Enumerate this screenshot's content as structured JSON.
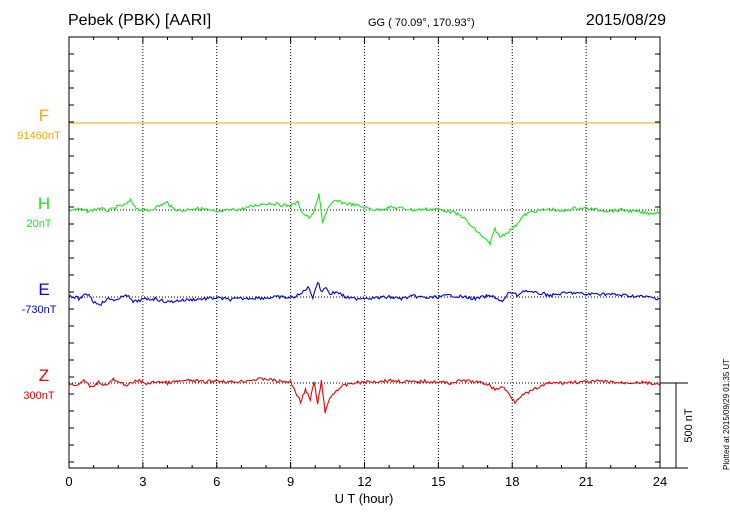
{
  "header": {
    "station": "Pebek (PBK)  [AARI]",
    "coords": "GG ( 70.09°, 170.93°)",
    "date": "2015/08/29"
  },
  "footer": {
    "plotted": "Plotted at 2015/09/29 01:35 UT"
  },
  "colors": {
    "F": "#f0a800",
    "H": "#20e020",
    "E": "#0000dd",
    "Z": "#ee0000"
  },
  "chart_data": {
    "type": "line",
    "title": "Pebek (PBK)  [AARI]",
    "xlabel": "U T (hour)",
    "xlim": [
      0,
      24
    ],
    "xticks": [
      "0",
      "3",
      "6",
      "9",
      "12",
      "15",
      "18",
      "21",
      "24"
    ],
    "scale_label": "500 nT",
    "scale_nT": 500,
    "grid": true,
    "series": [
      {
        "name": "F",
        "baseline": "91460nT",
        "x": [
          0,
          24
        ],
        "y": [
          0,
          0
        ]
      },
      {
        "name": "H",
        "baseline": "20nT",
        "x": [
          0,
          0.4,
          0.8,
          1.2,
          1.6,
          2.0,
          2.3,
          2.5,
          2.8,
          3.2,
          3.6,
          4.0,
          4.2,
          4.6,
          5.0,
          5.5,
          6.0,
          6.5,
          7.0,
          7.4,
          7.8,
          8.2,
          8.6,
          9.0,
          9.3,
          9.5,
          9.8,
          10.0,
          10.15,
          10.3,
          10.5,
          10.8,
          11.2,
          11.6,
          12.0,
          12.5,
          13.0,
          13.5,
          14.0,
          14.5,
          15.0,
          15.5,
          16.0,
          16.3,
          16.6,
          16.9,
          17.1,
          17.3,
          17.5,
          17.8,
          18.1,
          18.3,
          18.5,
          18.8,
          19.2,
          19.6,
          20.0,
          20.5,
          21.0,
          21.5,
          22.0,
          22.5,
          23.0,
          23.5,
          24.0
        ],
        "y": [
          0,
          5,
          -8,
          10,
          -5,
          20,
          30,
          55,
          5,
          -5,
          20,
          45,
          10,
          -5,
          10,
          5,
          -15,
          0,
          5,
          20,
          35,
          40,
          30,
          25,
          45,
          -20,
          -50,
          10,
          90,
          -70,
          5,
          55,
          40,
          30,
          15,
          0,
          15,
          10,
          0,
          5,
          5,
          -10,
          -40,
          -90,
          -130,
          -170,
          -200,
          -110,
          -160,
          -130,
          -100,
          -60,
          -30,
          -10,
          0,
          5,
          -10,
          10,
          10,
          0,
          -5,
          0,
          -10,
          -20,
          -15
        ]
      },
      {
        "name": "E",
        "baseline": "-730nT",
        "x": [
          0,
          0.4,
          0.8,
          1.0,
          1.3,
          1.6,
          2.0,
          2.3,
          2.6,
          3.0,
          3.5,
          4.0,
          4.5,
          5.0,
          5.5,
          6.0,
          6.5,
          7.0,
          7.5,
          8.0,
          8.5,
          9.0,
          9.4,
          9.7,
          9.9,
          10.1,
          10.25,
          10.4,
          10.6,
          10.9,
          11.2,
          11.5,
          12.0,
          12.5,
          13.0,
          13.5,
          14.0,
          14.5,
          15.0,
          15.5,
          16.0,
          16.5,
          17.0,
          17.3,
          17.6,
          17.9,
          18.2,
          18.5,
          18.8,
          19.2,
          19.6,
          20.0,
          20.5,
          21.0,
          21.5,
          22.0,
          22.5,
          23.0,
          23.5,
          24.0
        ],
        "y": [
          10,
          -10,
          20,
          -30,
          -40,
          -10,
          -20,
          20,
          -30,
          -15,
          -10,
          -30,
          -20,
          -15,
          -10,
          -5,
          -15,
          -10,
          -5,
          -5,
          0,
          -5,
          15,
          60,
          0,
          90,
          30,
          60,
          20,
          30,
          0,
          -10,
          -5,
          -5,
          0,
          -10,
          5,
          -5,
          0,
          10,
          0,
          -10,
          5,
          0,
          -30,
          30,
          10,
          40,
          25,
          20,
          10,
          20,
          25,
          15,
          20,
          15,
          10,
          5,
          0,
          -10
        ]
      },
      {
        "name": "Z",
        "baseline": "300nT",
        "x": [
          0,
          0.3,
          0.6,
          0.9,
          1.2,
          1.5,
          1.8,
          2.0,
          2.4,
          2.8,
          3.2,
          3.6,
          4.0,
          4.5,
          5.0,
          5.5,
          6.0,
          6.5,
          7.0,
          7.5,
          8.0,
          8.5,
          9.0,
          9.2,
          9.4,
          9.6,
          9.8,
          9.95,
          10.1,
          10.25,
          10.4,
          10.55,
          10.8,
          11.1,
          11.5,
          12.0,
          12.5,
          13.0,
          13.5,
          14.0,
          14.5,
          15.0,
          15.5,
          16.0,
          16.5,
          17.0,
          17.3,
          17.6,
          17.9,
          18.1,
          18.3,
          18.6,
          19.0,
          19.5,
          20.0,
          20.5,
          21.0,
          21.5,
          22.0,
          22.5,
          23.0,
          23.5,
          24.0
        ],
        "y": [
          0,
          -20,
          15,
          -25,
          5,
          -15,
          20,
          0,
          -10,
          15,
          -5,
          10,
          0,
          10,
          15,
          5,
          15,
          5,
          10,
          20,
          25,
          10,
          5,
          -50,
          -110,
          -40,
          -100,
          10,
          -130,
          20,
          -180,
          -100,
          -50,
          -20,
          0,
          5,
          10,
          15,
          10,
          5,
          10,
          5,
          0,
          15,
          5,
          -5,
          -40,
          -20,
          -70,
          -110,
          -80,
          -60,
          -30,
          0,
          0,
          5,
          5,
          10,
          5,
          0,
          5,
          0,
          -10
        ]
      }
    ]
  }
}
